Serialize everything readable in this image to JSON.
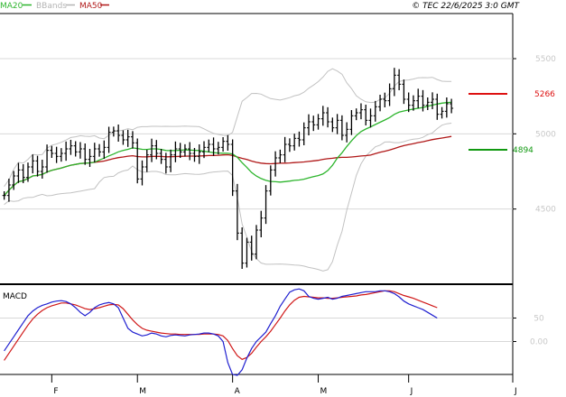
{
  "header": {
    "copyright": "© TEC 22/6/2025 3:0 GMT",
    "legend": [
      {
        "label": "MA20",
        "color": "#2db52d"
      },
      {
        "label": "BBands",
        "color": "#b4b4b4"
      },
      {
        "label": "MA50",
        "color": "#b01818"
      }
    ]
  },
  "colors": {
    "price": "#000000",
    "ma20": "#2db52d",
    "ma50": "#b01818",
    "bbands": "#c2c2c2",
    "macd": "#2020d0",
    "signal": "#d01818",
    "resistance": "#dd1111",
    "support": "#119911",
    "grid": "#d8d8d8"
  },
  "levels": {
    "resistance": {
      "label": "5266",
      "value": 5266
    },
    "support": {
      "label": "4894",
      "value": 4894
    }
  },
  "chart_data": [
    {
      "type": "ohlc",
      "title": "",
      "ylim": [
        4000,
        5800
      ],
      "y_ticks": [
        {
          "value": 4500,
          "label": "4500"
        },
        {
          "value": 5000,
          "label": "5000"
        },
        {
          "value": 5500,
          "label": "5500"
        }
      ],
      "months": [
        {
          "label": "F",
          "index": 10
        },
        {
          "label": "M",
          "index": 28
        },
        {
          "label": "A",
          "index": 48
        },
        {
          "label": "M",
          "index": 66
        },
        {
          "label": "J",
          "index": 85
        },
        {
          "label": "J",
          "index": 107
        }
      ],
      "total_slots": 107,
      "close": [
        4590,
        4660,
        4720,
        4760,
        4710,
        4780,
        4820,
        4750,
        4780,
        4890,
        4870,
        4850,
        4870,
        4900,
        4920,
        4880,
        4900,
        4830,
        4850,
        4900,
        4880,
        4910,
        5010,
        5020,
        4990,
        4960,
        4980,
        4940,
        4700,
        4780,
        4860,
        4920,
        4870,
        4830,
        4780,
        4860,
        4900,
        4880,
        4900,
        4870,
        4850,
        4880,
        4910,
        4930,
        4900,
        4910,
        4950,
        4930,
        4620,
        4340,
        4140,
        4280,
        4200,
        4360,
        4440,
        4620,
        4760,
        4840,
        4860,
        4930,
        4920,
        4970,
        4960,
        5040,
        5080,
        5060,
        5100,
        5140,
        5080,
        5040,
        5090,
        4990,
        5030,
        5120,
        5140,
        5160,
        5090,
        5120,
        5180,
        5230,
        5220,
        5300,
        5390,
        5330,
        5230,
        5190,
        5220,
        5250,
        5190,
        5210,
        5230,
        5130,
        5150,
        5200,
        5170
      ]
    },
    {
      "type": "line",
      "title": "MACD",
      "ylim": [
        -70,
        120
      ],
      "y_ticks": [
        {
          "value": 50,
          "label": "50"
        },
        {
          "value": 0,
          "label": "0.00"
        }
      ],
      "series": [
        {
          "name": "MACD",
          "values": [
            -20,
            -5,
            10,
            25,
            40,
            55,
            65,
            72,
            77,
            80,
            84,
            86,
            87,
            85,
            80,
            72,
            62,
            55,
            62,
            72,
            78,
            81,
            83,
            80,
            72,
            50,
            28,
            20,
            16,
            12,
            14,
            18,
            16,
            12,
            10,
            13,
            14,
            13,
            12,
            14,
            15,
            16,
            18,
            18,
            16,
            12,
            0,
            -45,
            -70,
            -72,
            -60,
            -35,
            -15,
            0,
            10,
            20,
            38,
            55,
            75,
            90,
            105,
            110,
            112,
            108,
            96,
            92,
            90,
            92,
            94,
            90,
            92,
            96,
            98,
            100,
            102,
            104,
            106,
            106,
            106,
            108,
            108,
            106,
            102,
            95,
            86,
            80,
            76,
            72,
            68,
            62,
            56,
            50
          ]
        },
        {
          "name": "Signal",
          "values": [
            -40,
            -25,
            -10,
            5,
            20,
            35,
            48,
            58,
            66,
            72,
            76,
            79,
            82,
            82,
            80,
            78,
            74,
            70,
            68,
            70,
            72,
            75,
            78,
            79,
            78,
            70,
            58,
            46,
            36,
            28,
            24,
            22,
            20,
            18,
            17,
            16,
            16,
            15,
            15,
            15,
            15,
            15,
            16,
            16,
            16,
            15,
            12,
            2,
            -15,
            -30,
            -38,
            -34,
            -25,
            -12,
            0,
            10,
            22,
            36,
            50,
            65,
            78,
            88,
            94,
            96,
            95,
            94,
            93,
            93,
            92,
            92,
            93,
            94,
            95,
            96,
            97,
            99,
            100,
            102,
            104,
            106,
            108,
            108,
            106,
            102,
            98,
            95,
            92,
            88,
            84,
            80,
            76,
            72
          ]
        }
      ]
    }
  ]
}
